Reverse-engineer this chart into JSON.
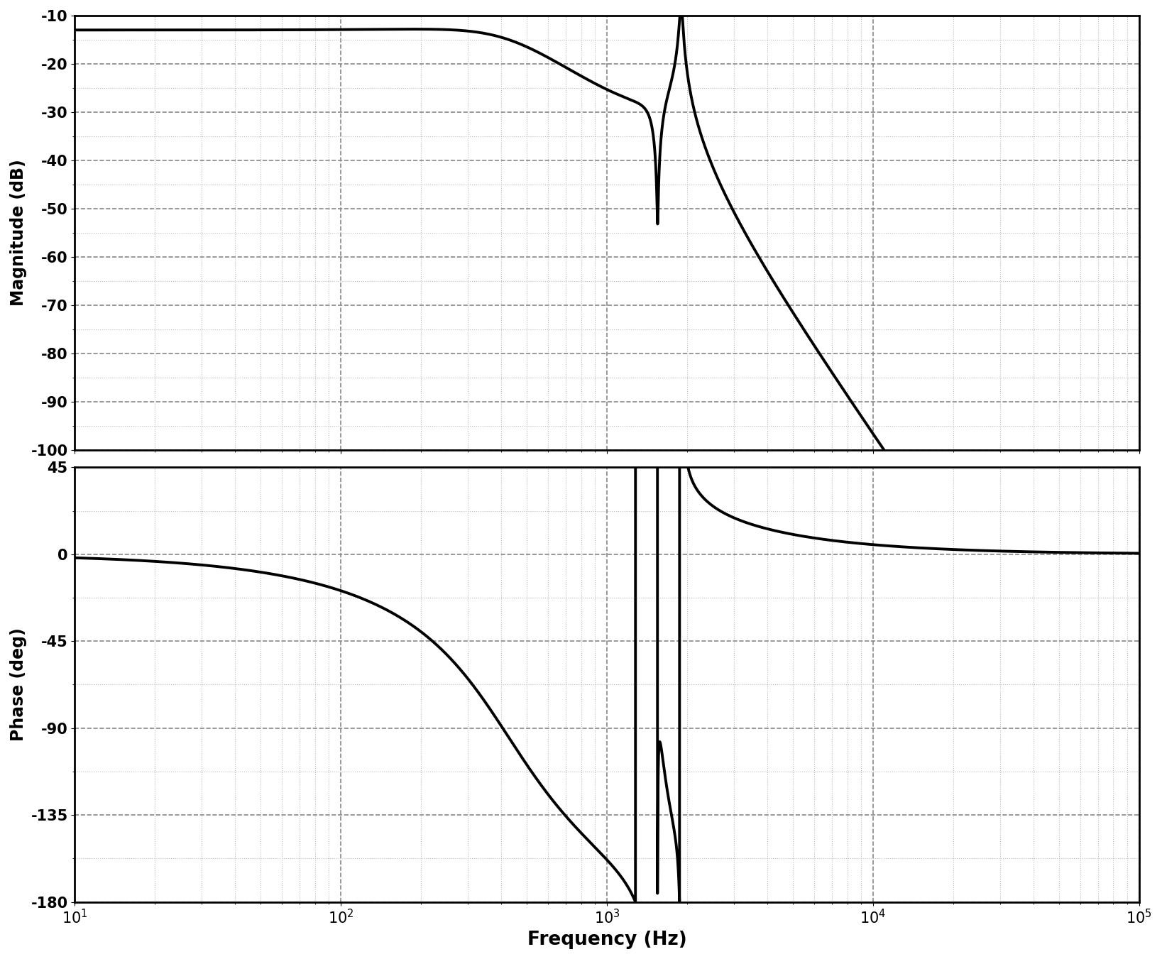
{
  "freq_min": 10,
  "freq_max": 100000,
  "mag_ylim": [
    -100,
    -10
  ],
  "mag_yticks": [
    -10,
    -20,
    -30,
    -40,
    -50,
    -60,
    -70,
    -80,
    -90,
    -100
  ],
  "phase_ylim": [
    -180,
    45
  ],
  "phase_yticks": [
    -180,
    -135,
    -90,
    -45,
    0,
    45
  ],
  "xlabel": "Frequency (Hz)",
  "mag_ylabel": "Magnitude (dB)",
  "phase_ylabel": "Phase (deg)",
  "line_color": "#000000",
  "line_width": 2.8,
  "grid_major_color": "#888888",
  "grid_minor_color": "#bbbbbb",
  "grid_major_style": "--",
  "grid_minor_style": ":",
  "background_color": "#ffffff",
  "dc_gain_db": -13.0,
  "f_notch": 1550,
  "zeta_notch_zero": 0.004,
  "zeta_notch_pole": 0.09,
  "f_res": 1900,
  "zeta_res": 0.012,
  "f_lp": 420,
  "zeta_lp": 0.65,
  "fig_width": 16.37,
  "fig_height": 13.51,
  "dpi": 100
}
